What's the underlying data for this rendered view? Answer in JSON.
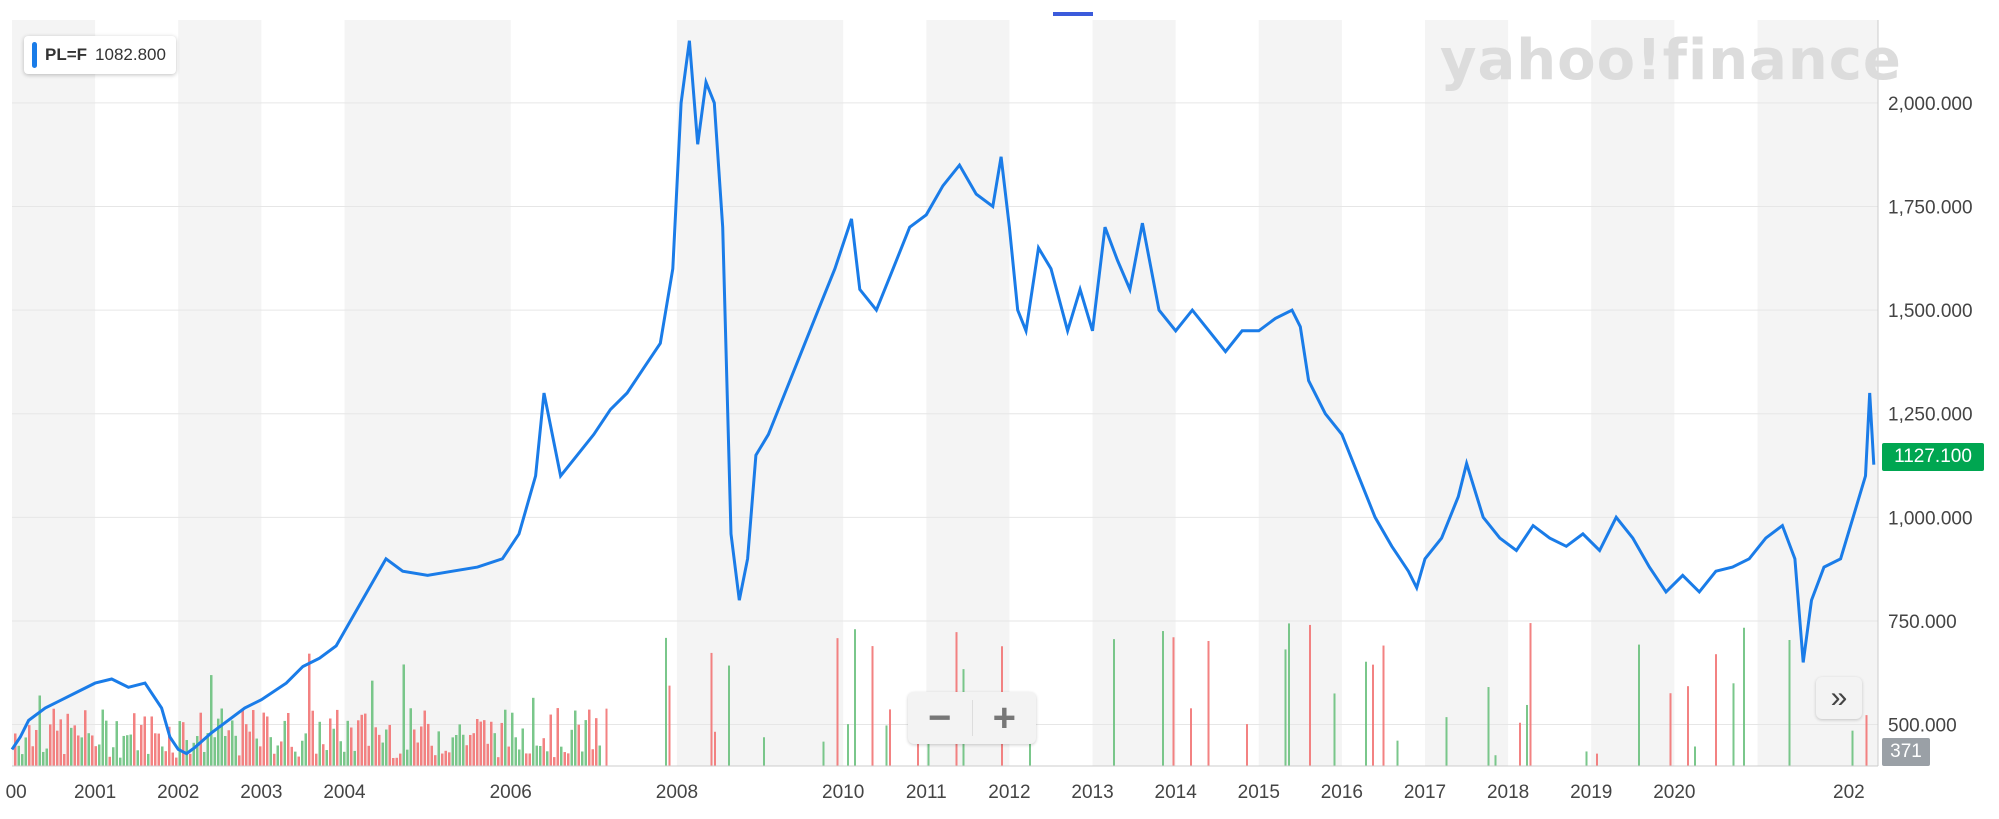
{
  "brand": "yahoo!finance",
  "legend": {
    "symbol": "PL=F",
    "value": "1082.800"
  },
  "current_price_label": "1127.100",
  "volume_label": "371",
  "controls": {
    "zoom_out": "−",
    "zoom_in": "+",
    "expand": "»"
  },
  "colors": {
    "line": "#1a7ce8",
    "vol_up": "#6cc17e",
    "vol_down": "#f27474",
    "price_tag": "#00a651"
  },
  "chart_data": {
    "type": "line",
    "y_ticks": [
      "2,000.000",
      "1,750.000",
      "1,500.000",
      "1,250.000",
      "1,000.000",
      "750.000",
      "500.000"
    ],
    "x_ticks": [
      "00",
      "2001",
      "2002",
      "2003",
      "2004",
      "2006",
      "2008",
      "2010",
      "2011",
      "2012",
      "2013",
      "2014",
      "2015",
      "2016",
      "2017",
      "2018",
      "2019",
      "2020",
      "202"
    ],
    "series": [
      {
        "points": [
          [
            2000.0,
            440
          ],
          [
            2000.1,
            470
          ],
          [
            2000.2,
            510
          ],
          [
            2000.4,
            540
          ],
          [
            2000.6,
            560
          ],
          [
            2000.8,
            580
          ],
          [
            2001.0,
            600
          ],
          [
            2001.2,
            610
          ],
          [
            2001.4,
            590
          ],
          [
            2001.6,
            600
          ],
          [
            2001.8,
            540
          ],
          [
            2001.9,
            470
          ],
          [
            2002.0,
            440
          ],
          [
            2002.1,
            430
          ],
          [
            2002.2,
            445
          ],
          [
            2002.4,
            480
          ],
          [
            2002.6,
            510
          ],
          [
            2002.8,
            540
          ],
          [
            2003.0,
            560
          ],
          [
            2003.3,
            600
          ],
          [
            2003.5,
            640
          ],
          [
            2003.7,
            660
          ],
          [
            2003.9,
            690
          ],
          [
            2004.1,
            760
          ],
          [
            2004.3,
            830
          ],
          [
            2004.5,
            900
          ],
          [
            2004.7,
            870
          ],
          [
            2005.0,
            860
          ],
          [
            2005.3,
            870
          ],
          [
            2005.6,
            880
          ],
          [
            2005.9,
            900
          ],
          [
            2006.1,
            960
          ],
          [
            2006.3,
            1100
          ],
          [
            2006.4,
            1300
          ],
          [
            2006.5,
            1200
          ],
          [
            2006.6,
            1100
          ],
          [
            2006.8,
            1150
          ],
          [
            2007.0,
            1200
          ],
          [
            2007.2,
            1260
          ],
          [
            2007.4,
            1300
          ],
          [
            2007.6,
            1360
          ],
          [
            2007.8,
            1420
          ],
          [
            2007.95,
            1600
          ],
          [
            2008.05,
            2000
          ],
          [
            2008.15,
            2150
          ],
          [
            2008.25,
            1900
          ],
          [
            2008.35,
            2050
          ],
          [
            2008.45,
            2000
          ],
          [
            2008.55,
            1700
          ],
          [
            2008.65,
            960
          ],
          [
            2008.75,
            800
          ],
          [
            2008.85,
            900
          ],
          [
            2008.95,
            1150
          ],
          [
            2009.1,
            1200
          ],
          [
            2009.3,
            1300
          ],
          [
            2009.5,
            1400
          ],
          [
            2009.7,
            1500
          ],
          [
            2009.9,
            1600
          ],
          [
            2010.1,
            1720
          ],
          [
            2010.2,
            1550
          ],
          [
            2010.4,
            1500
          ],
          [
            2010.6,
            1600
          ],
          [
            2010.8,
            1700
          ],
          [
            2011.0,
            1730
          ],
          [
            2011.2,
            1800
          ],
          [
            2011.4,
            1850
          ],
          [
            2011.6,
            1780
          ],
          [
            2011.8,
            1750
          ],
          [
            2011.9,
            1870
          ],
          [
            2012.0,
            1700
          ],
          [
            2012.1,
            1500
          ],
          [
            2012.2,
            1450
          ],
          [
            2012.35,
            1650
          ],
          [
            2012.5,
            1600
          ],
          [
            2012.7,
            1450
          ],
          [
            2012.85,
            1550
          ],
          [
            2013.0,
            1450
          ],
          [
            2013.15,
            1700
          ],
          [
            2013.3,
            1620
          ],
          [
            2013.45,
            1550
          ],
          [
            2013.6,
            1710
          ],
          [
            2013.8,
            1500
          ],
          [
            2014.0,
            1450
          ],
          [
            2014.2,
            1500
          ],
          [
            2014.4,
            1450
          ],
          [
            2014.6,
            1400
          ],
          [
            2014.8,
            1450
          ],
          [
            2015.0,
            1450
          ],
          [
            2015.2,
            1480
          ],
          [
            2015.4,
            1500
          ],
          [
            2015.5,
            1460
          ],
          [
            2015.6,
            1330
          ],
          [
            2015.8,
            1250
          ],
          [
            2016.0,
            1200
          ],
          [
            2016.2,
            1100
          ],
          [
            2016.4,
            1000
          ],
          [
            2016.6,
            930
          ],
          [
            2016.8,
            870
          ],
          [
            2016.9,
            830
          ],
          [
            2017.0,
            900
          ],
          [
            2017.2,
            950
          ],
          [
            2017.4,
            1050
          ],
          [
            2017.5,
            1130
          ],
          [
            2017.7,
            1000
          ],
          [
            2017.9,
            950
          ],
          [
            2018.1,
            920
          ],
          [
            2018.3,
            980
          ],
          [
            2018.5,
            950
          ],
          [
            2018.7,
            930
          ],
          [
            2018.9,
            960
          ],
          [
            2019.1,
            920
          ],
          [
            2019.3,
            1000
          ],
          [
            2019.5,
            950
          ],
          [
            2019.7,
            880
          ],
          [
            2019.9,
            820
          ],
          [
            2020.1,
            860
          ],
          [
            2020.3,
            820
          ],
          [
            2020.5,
            870
          ],
          [
            2020.7,
            880
          ],
          [
            2020.9,
            900
          ],
          [
            2021.1,
            950
          ],
          [
            2021.3,
            980
          ],
          [
            2021.45,
            900
          ],
          [
            2021.55,
            650
          ],
          [
            2021.65,
            800
          ],
          [
            2021.8,
            880
          ],
          [
            2022.0,
            900
          ],
          [
            2022.15,
            1000
          ],
          [
            2022.3,
            1100
          ],
          [
            2022.35,
            1300
          ],
          [
            2022.4,
            1127
          ]
        ]
      }
    ],
    "xlim": [
      2000.0,
      2022.45
    ],
    "ylim": [
      400,
      2200
    ],
    "grid": true
  }
}
